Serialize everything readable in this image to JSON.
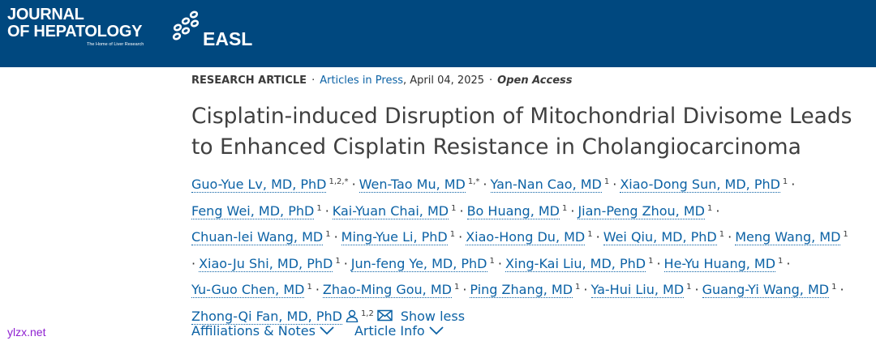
{
  "header": {
    "journal_line1": "JOURNAL",
    "journal_line2": "OF HEPATOLOGY",
    "tagline": "The Home of Liver Research",
    "society": "EASL"
  },
  "article": {
    "article_type": "RESEARCH ARTICLE",
    "status": "Articles in Press",
    "date": ", April 04, 2025",
    "access": "Open Access",
    "separator": "·",
    "title_lines": [
      "Cisplatin-induced Disruption of Mitochondrial Divisome Leads",
      "to Enhanced Cisplatin Resistance in Cholangiocarcinoma"
    ],
    "authors": [
      {
        "name": "Guo-Yue Lv, MD, PhD",
        "affiliations": "1,2,*"
      },
      {
        "name": "Wen-Tao Mu, MD",
        "affiliations": "1,*"
      },
      {
        "name": "Yan-Nan Cao, MD",
        "affiliations": "1"
      },
      {
        "name": "Xiao-Dong Sun, MD, PhD",
        "affiliations": "1"
      },
      {
        "name": "Feng Wei, MD, PhD",
        "affiliations": "1"
      },
      {
        "name": "Kai-Yuan Chai, MD",
        "affiliations": "1"
      },
      {
        "name": "Bo Huang, MD",
        "affiliations": "1"
      },
      {
        "name": "Jian-Peng Zhou, MD",
        "affiliations": "1"
      },
      {
        "name": "Chuan-lei Wang, MD",
        "affiliations": "1"
      },
      {
        "name": "Ming-Yue Li, PhD",
        "affiliations": "1"
      },
      {
        "name": "Xiao-Hong Du, MD",
        "affiliations": "1"
      },
      {
        "name": "Wei Qiu, MD, PhD",
        "affiliations": "1"
      },
      {
        "name": "Meng Wang, MD",
        "affiliations": "1"
      },
      {
        "name": "Xiao-Ju Shi, MD, PhD",
        "affiliations": "1"
      },
      {
        "name": "Jun-feng Ye, MD, PhD",
        "affiliations": "1"
      },
      {
        "name": "Xing-Kai Liu, MD, PhD",
        "affiliations": "1"
      },
      {
        "name": "He-Yu Huang, MD",
        "affiliations": "1"
      },
      {
        "name": "Yu-Guo Chen, MD",
        "affiliations": "1"
      },
      {
        "name": "Zhao-Ming Gou, MD",
        "affiliations": "1"
      },
      {
        "name": "Ping Zhang, MD",
        "affiliations": "1"
      },
      {
        "name": "Ya-Hui Liu, MD",
        "affiliations": "1"
      },
      {
        "name": "Guang-Yi Wang, MD",
        "affiliations": "1"
      },
      {
        "name": "Zhong-Qi Fan, MD, PhD",
        "affiliations": "1,2"
      }
    ],
    "show_less": "Show less",
    "tabs": [
      "Affiliations & Notes",
      "Article Info"
    ]
  },
  "watermark": "ylzx.net"
}
